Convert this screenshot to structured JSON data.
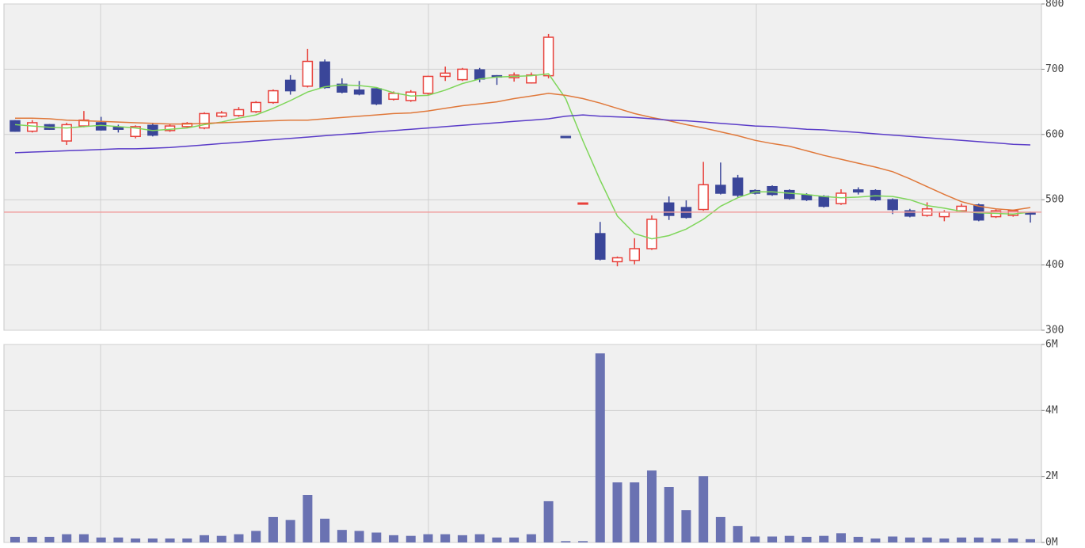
{
  "chart_data": [
    {
      "type": "candlestick",
      "categories": [
        null,
        null,
        null,
        null,
        null,
        null,
        null,
        null,
        null,
        null,
        null,
        null,
        null,
        null,
        null,
        null,
        null,
        null,
        null,
        null,
        null,
        null,
        null,
        null,
        null,
        null,
        null,
        null,
        null,
        null,
        null,
        null,
        null,
        null,
        null,
        null,
        null,
        null,
        null,
        null,
        null,
        null,
        null,
        null,
        null,
        null,
        null,
        null,
        null,
        null,
        null,
        null,
        null,
        null,
        null,
        null,
        null,
        null,
        null,
        null
      ],
      "open": [
        621,
        605,
        615,
        590,
        613,
        618,
        611,
        597,
        614,
        606,
        612,
        610,
        628,
        629,
        635,
        649,
        683,
        674,
        711,
        677,
        668,
        670,
        654,
        652,
        663,
        689,
        684,
        699,
        690,
        687,
        679,
        690,
        597,
        495,
        448,
        405,
        407,
        425,
        495,
        488,
        485,
        522,
        533,
        514,
        520,
        514,
        507,
        505,
        494,
        515,
        514,
        500,
        483,
        476,
        474,
        483,
        492,
        474,
        476,
        480
      ],
      "high": [
        622,
        622,
        616,
        618,
        636,
        627,
        615,
        614,
        618,
        616,
        619,
        634,
        636,
        642,
        651,
        669,
        691,
        731,
        715,
        686,
        682,
        671,
        666,
        668,
        690,
        704,
        702,
        702,
        691,
        695,
        695,
        754,
        597,
        495,
        466,
        413,
        441,
        476,
        505,
        499,
        558,
        557,
        538,
        516,
        522,
        516,
        510,
        507,
        516,
        519,
        516,
        502,
        486,
        496,
        484,
        494,
        494,
        485,
        485,
        482
      ],
      "low": [
        604,
        603,
        607,
        584,
        611,
        606,
        603,
        594,
        597,
        604,
        610,
        608,
        626,
        627,
        633,
        647,
        661,
        672,
        670,
        663,
        660,
        645,
        652,
        650,
        661,
        682,
        682,
        680,
        676,
        681,
        678,
        686,
        596,
        495,
        407,
        398,
        401,
        423,
        469,
        471,
        483,
        508,
        504,
        508,
        506,
        500,
        498,
        488,
        492,
        508,
        498,
        478,
        473,
        474,
        467,
        481,
        467,
        472,
        474,
        465
      ],
      "close": [
        605,
        618,
        608,
        615,
        622,
        607,
        608,
        612,
        599,
        613,
        617,
        632,
        633,
        638,
        649,
        667,
        667,
        712,
        672,
        665,
        662,
        647,
        663,
        665,
        689,
        694,
        700,
        685,
        688,
        691,
        691,
        749,
        596,
        495,
        409,
        411,
        425,
        470,
        476,
        473,
        523,
        510,
        507,
        510,
        508,
        502,
        500,
        490,
        510,
        512,
        500,
        485,
        475,
        486,
        481,
        490,
        469,
        483,
        483,
        478
      ],
      "up_color": "#e8403a",
      "down_color": "#3a4699",
      "series": [
        {
          "color": "#7fd65a",
          "values": [
            615,
            613,
            611,
            610,
            612,
            614,
            612,
            610,
            606,
            608,
            610,
            615,
            619,
            625,
            630,
            640,
            652,
            665,
            673,
            676,
            675,
            672,
            664,
            659,
            660,
            668,
            678,
            685,
            688,
            689,
            690,
            693,
            655,
            590,
            530,
            475,
            448,
            440,
            445,
            455,
            470,
            490,
            503,
            512,
            512,
            510,
            508,
            505,
            503,
            504,
            506,
            505,
            500,
            491,
            487,
            482,
            480,
            479,
            478,
            481
          ]
        },
        {
          "color": "#e0783a",
          "values": [
            625,
            625,
            624,
            622,
            621,
            620,
            619,
            618,
            617,
            616,
            616,
            617,
            618,
            619,
            620,
            621,
            622,
            622,
            624,
            626,
            628,
            630,
            632,
            633,
            636,
            640,
            644,
            647,
            650,
            655,
            659,
            663,
            660,
            655,
            648,
            640,
            632,
            626,
            621,
            615,
            610,
            604,
            598,
            591,
            586,
            582,
            575,
            568,
            562,
            556,
            550,
            543,
            532,
            520,
            508,
            497,
            490,
            486,
            484,
            488
          ]
        },
        {
          "color": "#5a3cc8",
          "values": [
            572,
            573,
            574,
            575,
            576,
            577,
            578,
            578,
            579,
            580,
            582,
            584,
            586,
            588,
            590,
            592,
            594,
            596,
            598,
            600,
            602,
            604,
            606,
            608,
            610,
            612,
            614,
            616,
            618,
            620,
            622,
            624,
            628,
            630,
            628,
            627,
            626,
            624,
            622,
            621,
            619,
            617,
            615,
            613,
            612,
            610,
            608,
            607,
            605,
            603,
            601,
            599,
            597,
            595,
            593,
            591,
            589,
            587,
            585,
            584
          ]
        }
      ],
      "reference_line": {
        "value": 481,
        "color": "#f0a0a0"
      },
      "ylim": [
        300,
        800
      ],
      "yticks": [
        300,
        400,
        500,
        600,
        700,
        800
      ],
      "grid": true
    },
    {
      "type": "bar",
      "categories": [
        null,
        null,
        null,
        null,
        null,
        null,
        null,
        null,
        null,
        null,
        null,
        null,
        null,
        null,
        null,
        null,
        null,
        null,
        null,
        null,
        null,
        null,
        null,
        null,
        null,
        null,
        null,
        null,
        null,
        null,
        null,
        null,
        null,
        null,
        null,
        null,
        null,
        null,
        null,
        null,
        null,
        null,
        null,
        null,
        null,
        null,
        null,
        null,
        null,
        null,
        null,
        null,
        null,
        null,
        null,
        null,
        null,
        null,
        null,
        null
      ],
      "values": [
        0.17,
        0.17,
        0.17,
        0.25,
        0.25,
        0.15,
        0.15,
        0.12,
        0.12,
        0.12,
        0.12,
        0.22,
        0.2,
        0.25,
        0.35,
        0.77,
        0.68,
        1.44,
        0.72,
        0.38,
        0.35,
        0.3,
        0.22,
        0.2,
        0.25,
        0.25,
        0.22,
        0.25,
        0.15,
        0.15,
        0.25,
        1.25,
        0.04,
        0.04,
        5.73,
        1.82,
        1.82,
        2.18,
        1.68,
        0.98,
        2.01,
        0.77,
        0.5,
        0.18,
        0.18,
        0.2,
        0.17,
        0.2,
        0.28,
        0.17,
        0.12,
        0.18,
        0.15,
        0.15,
        0.12,
        0.15,
        0.15,
        0.12,
        0.12,
        0.1
      ],
      "color": "#6a72b2",
      "ylim": [
        0,
        6
      ],
      "yticks": [
        {
          "value": 0,
          "label": "0M"
        },
        {
          "value": 2,
          "label": "2M"
        },
        {
          "value": 4,
          "label": "4M"
        },
        {
          "value": 6,
          "label": "6M"
        }
      ],
      "grid": true
    }
  ]
}
